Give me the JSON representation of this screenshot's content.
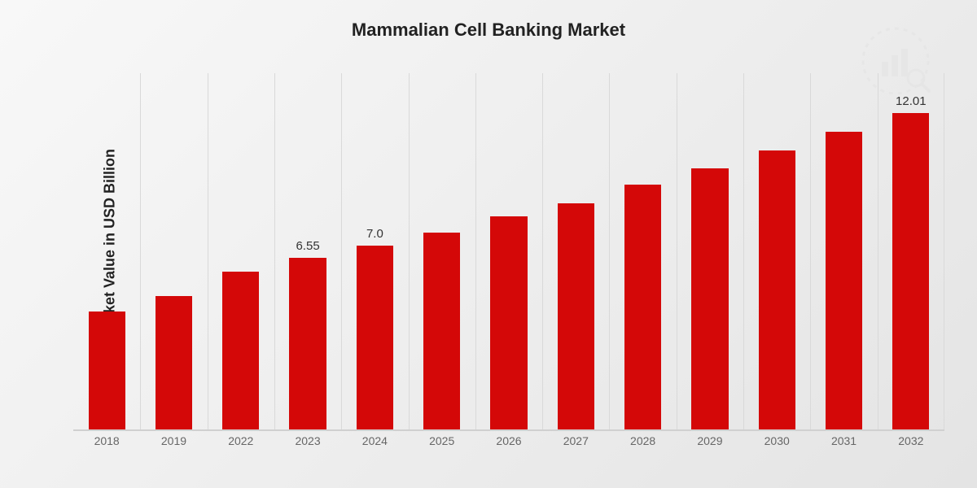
{
  "chart": {
    "type": "bar",
    "title": "Mammalian Cell Banking Market",
    "yaxis_label": "Market Value in USD Billion",
    "background_gradient_from": "#f8f8f8",
    "background_gradient_to": "#e4e4e4",
    "bar_color": "#d40808",
    "grid_color": "#d9d9d9",
    "baseline_color": "#d0d0d0",
    "text_color": "#222",
    "tick_color": "#666",
    "title_fontsize": 22,
    "yaxis_label_fontsize": 18,
    "value_label_fontsize": 15,
    "xtick_fontsize": 14,
    "ylim_max": 13.5,
    "bar_width_ratio": 0.55,
    "categories": [
      "2018",
      "2019",
      "2022",
      "2023",
      "2024",
      "2025",
      "2026",
      "2027",
      "2028",
      "2029",
      "2030",
      "2031",
      "2032"
    ],
    "values": [
      4.5,
      5.1,
      6.0,
      6.55,
      7.0,
      7.5,
      8.1,
      8.6,
      9.3,
      9.9,
      10.6,
      11.3,
      12.01
    ],
    "value_labels": {
      "3": "6.55",
      "4": "7.0",
      "12": "12.01"
    },
    "watermark": {
      "bar_color": "#d0d0d0",
      "accent_color": "#c9c9c9",
      "opacity": 0.15
    }
  }
}
